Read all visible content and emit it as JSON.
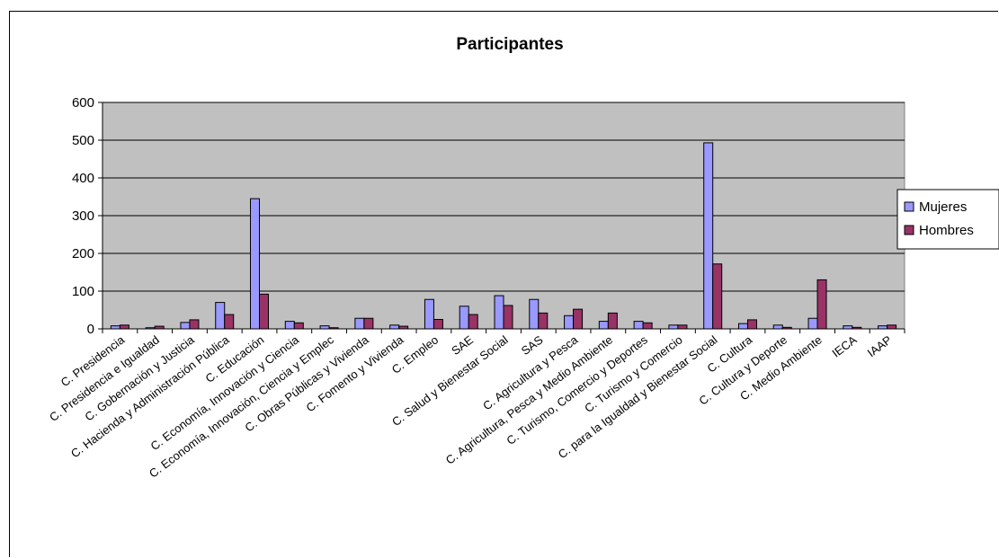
{
  "chart_data": {
    "type": "bar",
    "title": "Participantes",
    "xlabel": "",
    "ylabel": "",
    "ylim": [
      0,
      600
    ],
    "yticks": [
      0,
      100,
      200,
      300,
      400,
      500,
      600
    ],
    "grid": true,
    "legend_position": "right",
    "plot_background": "#c0c0c0",
    "categories": [
      "C. Presidencia",
      "C. Presidencia e Igualdad",
      "C. Gobernación y Justicia",
      "C. Hacienda y Administración Pública",
      "C. Educación",
      "C. Economía, Innovación y Ciencia",
      "C. Economía, Innovación, Ciencia y Emplec",
      "C. Obras Públicas y Vivienda",
      "C. Fomento y Vivienda",
      "C. Empleo",
      "SAE",
      "C. Salud y Bienestar Social",
      "SAS",
      "C. Agricultura y Pesca",
      "C. Agricultura, Pesca y Medio Ambiente",
      "C. Turismo, Comercio y Deportes",
      "C. Turismo y Comercio",
      "C. para la Igualdad y Bienestar Social",
      "C. Cultura",
      "C. Cultura y Deporte",
      "C. Medio Ambiente",
      "IECA",
      "IAAP"
    ],
    "series": [
      {
        "name": "Mujeres",
        "color": "#9999ff",
        "values": [
          8,
          3,
          17,
          70,
          345,
          20,
          8,
          28,
          10,
          78,
          60,
          88,
          78,
          35,
          20,
          20,
          10,
          493,
          14,
          10,
          28,
          8,
          8
        ]
      },
      {
        "name": "Hombres",
        "color": "#993366",
        "values": [
          10,
          7,
          24,
          38,
          92,
          16,
          3,
          28,
          7,
          25,
          38,
          62,
          42,
          52,
          42,
          16,
          10,
          172,
          24,
          4,
          130,
          4,
          10
        ]
      }
    ]
  }
}
